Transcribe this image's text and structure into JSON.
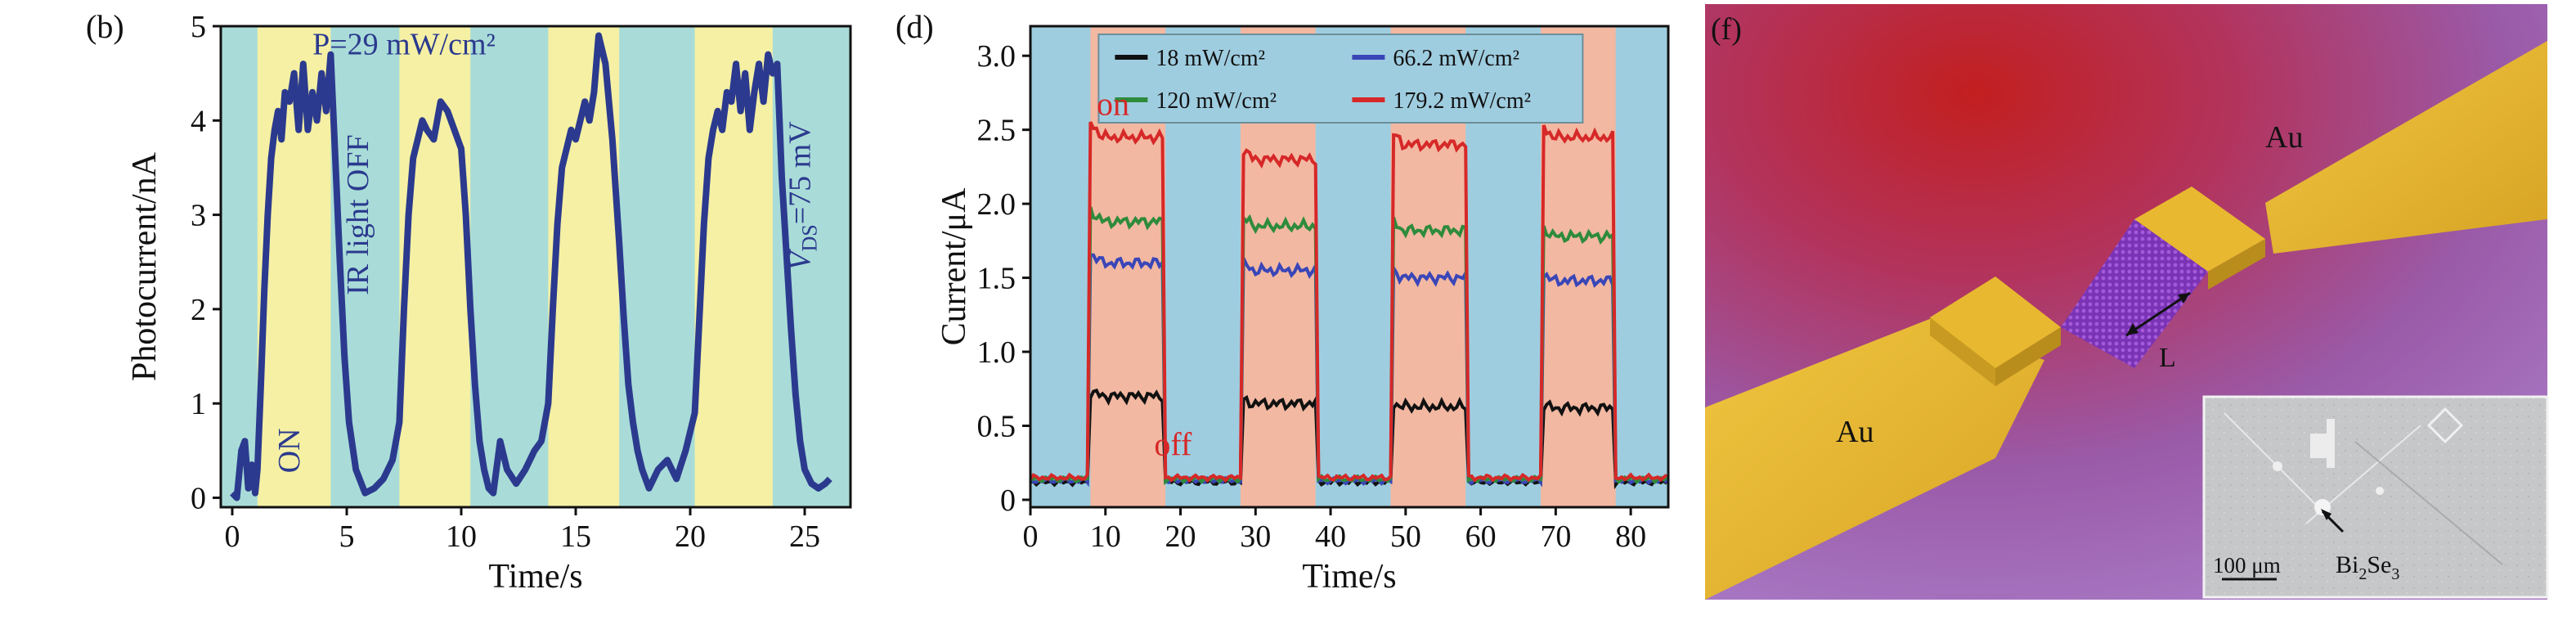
{
  "chart_data": [
    {
      "panel_label": "(b)",
      "type": "line",
      "xlabel": "Time/s",
      "ylabel": "Photocurrent/nA",
      "xlim": [
        -0.5,
        27
      ],
      "ylim": [
        -0.1,
        5
      ],
      "xticks": [
        0,
        5,
        10,
        15,
        20,
        25
      ],
      "yticks": [
        0,
        1,
        2,
        3,
        4,
        5
      ],
      "grid": false,
      "background_bands": {
        "colors": {
          "off": "#a9dcd8",
          "on": "#f5f0a4"
        },
        "on_intervals": [
          [
            1.1,
            4.3
          ],
          [
            7.3,
            10.4
          ],
          [
            13.8,
            16.9
          ],
          [
            20.2,
            23.6
          ]
        ]
      },
      "series": [
        {
          "color": "#2b3a8e",
          "x": [
            0.0,
            0.2,
            0.4,
            0.55,
            0.7,
            0.85,
            1.0,
            1.1,
            1.25,
            1.4,
            1.55,
            1.7,
            1.85,
            2.0,
            2.15,
            2.3,
            2.5,
            2.7,
            2.9,
            3.1,
            3.3,
            3.5,
            3.7,
            3.9,
            4.1,
            4.3,
            4.5,
            4.7,
            4.9,
            5.1,
            5.4,
            5.8,
            6.2,
            6.6,
            7.0,
            7.3,
            7.5,
            7.7,
            7.9,
            8.1,
            8.3,
            8.5,
            8.8,
            9.1,
            9.4,
            9.7,
            10.0,
            10.2,
            10.4,
            10.6,
            10.8,
            11.0,
            11.2,
            11.4,
            11.7,
            12.0,
            12.4,
            12.8,
            13.2,
            13.5,
            13.8,
            14.0,
            14.2,
            14.4,
            14.6,
            14.8,
            15.0,
            15.2,
            15.4,
            15.6,
            15.8,
            16.0,
            16.3,
            16.6,
            16.9,
            17.1,
            17.3,
            17.5,
            17.7,
            17.9,
            18.2,
            18.6,
            19.0,
            19.4,
            19.8,
            20.2,
            20.4,
            20.6,
            20.8,
            21.0,
            21.2,
            21.4,
            21.6,
            21.8,
            22.0,
            22.2,
            22.4,
            22.6,
            22.8,
            23.0,
            23.2,
            23.4,
            23.6,
            23.8,
            24.0,
            24.2,
            24.4,
            24.6,
            24.8,
            25.0,
            25.3,
            25.6,
            25.9,
            26.1
          ],
          "y": [
            0.05,
            0.0,
            0.5,
            0.6,
            0.1,
            0.35,
            0.05,
            0.3,
            1.2,
            2.2,
            3.0,
            3.6,
            3.9,
            4.1,
            3.8,
            4.3,
            4.2,
            4.5,
            3.9,
            4.6,
            3.9,
            4.3,
            4.0,
            4.5,
            4.1,
            4.7,
            3.6,
            2.5,
            1.5,
            0.8,
            0.3,
            0.05,
            0.1,
            0.2,
            0.4,
            0.8,
            2.0,
            3.0,
            3.6,
            3.8,
            4.0,
            3.9,
            3.8,
            4.2,
            4.1,
            3.9,
            3.7,
            3.0,
            2.0,
            1.2,
            0.6,
            0.3,
            0.1,
            0.05,
            0.6,
            0.3,
            0.15,
            0.3,
            0.5,
            0.6,
            1.0,
            2.0,
            2.9,
            3.5,
            3.7,
            3.9,
            3.8,
            4.0,
            4.2,
            4.0,
            4.3,
            4.9,
            4.6,
            3.8,
            2.7,
            1.9,
            1.2,
            0.8,
            0.5,
            0.3,
            0.1,
            0.3,
            0.4,
            0.2,
            0.5,
            0.9,
            1.9,
            2.9,
            3.6,
            3.9,
            4.1,
            3.9,
            4.3,
            4.2,
            4.6,
            4.1,
            4.5,
            3.9,
            4.3,
            4.6,
            4.2,
            4.7,
            4.5,
            4.6,
            3.4,
            2.6,
            1.8,
            1.1,
            0.6,
            0.3,
            0.15,
            0.1,
            0.15,
            0.2
          ]
        }
      ],
      "annotations": [
        {
          "text": "P=29 mW/cm²",
          "x": 7.5,
          "y": 4.7
        },
        {
          "text": "IR light OFF",
          "x": 5.5,
          "y": 3.0,
          "rotation": "vertical"
        },
        {
          "text": "ON",
          "x": 2.5,
          "y": 0.5,
          "rotation": "vertical"
        },
        {
          "text": "V",
          "subscript": "DS",
          "suffix": "=75 mV",
          "x": 24.8,
          "y": 3.2,
          "rotation": "vertical"
        }
      ]
    },
    {
      "panel_label": "(d)",
      "type": "line",
      "xlabel": "Time/s",
      "ylabel": "Current/μA",
      "xlim": [
        0,
        85
      ],
      "ylim": [
        -0.05,
        3.2
      ],
      "xticks": [
        0,
        10,
        20,
        30,
        40,
        50,
        60,
        70,
        80
      ],
      "yticks": [
        0,
        0.5,
        1.0,
        1.5,
        2.0,
        2.5,
        3.0
      ],
      "ytick_labels": [
        "0",
        "0.5",
        "1.0",
        "1.5",
        "2.0",
        "2.5",
        "3.0"
      ],
      "grid": false,
      "legend_position": "top-right",
      "background_bands": {
        "colors": {
          "off": "#9fcde0",
          "on": "#f2b8a2"
        },
        "on_intervals": [
          [
            8,
            18
          ],
          [
            28,
            38
          ],
          [
            48,
            58
          ],
          [
            68,
            78
          ]
        ]
      },
      "on_intervals": [
        [
          8,
          18
        ],
        [
          28,
          38
        ],
        [
          48,
          58
        ],
        [
          68,
          78
        ]
      ],
      "series": [
        {
          "name": "18 mW/cm²",
          "color": "#111111",
          "off_value": 0.12,
          "on_values": [
            0.7,
            0.65,
            0.63,
            0.62
          ]
        },
        {
          "name": "66.2 mW/cm²",
          "color": "#3a46b8",
          "off_value": 0.13,
          "on_values": [
            1.6,
            1.55,
            1.5,
            1.48
          ]
        },
        {
          "name": "120 mW/cm²",
          "color": "#2e8b3c",
          "off_value": 0.14,
          "on_values": [
            1.88,
            1.85,
            1.82,
            1.78
          ]
        },
        {
          "name": "179.2 mW/cm²",
          "color": "#d62828",
          "off_value": 0.15,
          "on_values": [
            2.45,
            2.3,
            2.4,
            2.45
          ]
        }
      ],
      "annotations": [
        {
          "text": "on",
          "x": 11,
          "y": 2.6,
          "color": "#d62828"
        },
        {
          "text": "off",
          "x": 19,
          "y": 0.3,
          "color": "#d62828"
        }
      ]
    }
  ],
  "figure_f": {
    "panel_label": "(f)",
    "label_au_top": "Au",
    "label_au_bottom": "Au",
    "label_L": "L",
    "inset": {
      "scale_bar": "100 μm",
      "material_main": "Bi",
      "material_sub1": "2",
      "material_mid": "Se",
      "material_sub2": "3"
    }
  }
}
